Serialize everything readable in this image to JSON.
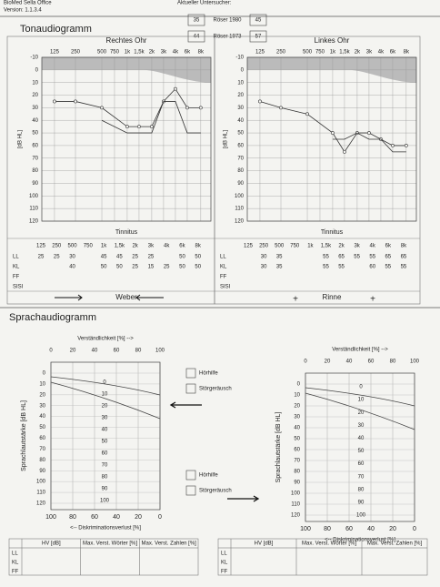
{
  "header": {
    "software": "BioMed Sella Office",
    "version": "Version: 1.1.3.4",
    "examiner": "Aktueller Untersucher:",
    "roeser": [
      {
        "left": "35",
        "label": "Röser 1980",
        "right": "45"
      },
      {
        "left": "44",
        "label": "Röser 1973",
        "right": "57"
      }
    ]
  },
  "tone": {
    "title": "Tonaudiogramm",
    "ylabel": "[dB HL]",
    "ylim": [
      -10,
      120
    ],
    "yticks": [
      -10,
      0,
      10,
      20,
      30,
      40,
      50,
      60,
      70,
      80,
      90,
      100,
      110,
      120
    ],
    "freqs": [
      "125",
      "250",
      "500",
      "750",
      "1k",
      "1,5k",
      "2k",
      "3k",
      "4k",
      "6k",
      "8k"
    ],
    "row_labels": [
      "LL",
      "KL",
      "FF",
      "SISI"
    ],
    "ears": [
      {
        "title": "Rechtes Ohr",
        "tinnitus": "Tinnitus",
        "test": "Weber",
        "test_marks": [
          "→",
          "←"
        ],
        "curves": [
          {
            "x": [
              "125",
              "250",
              "500",
              "1k",
              "1,5k",
              "2k",
              "3k",
              "4k",
              "6k",
              "8k"
            ],
            "values": [
              25,
              25,
              30,
              45,
              45,
              45,
              25,
              15,
              30,
              30
            ]
          },
          {
            "x": [
              "500",
              "1k",
              "1,5k",
              "2k",
              "3k",
              "4k",
              "6k",
              "8k"
            ],
            "values": [
              40,
              50,
              50,
              50,
              25,
              25,
              50,
              50
            ]
          }
        ],
        "rows": [
          [
            25,
            25,
            30,
            null,
            45,
            45,
            25,
            25,
            null,
            50,
            50
          ],
          [
            null,
            null,
            40,
            null,
            50,
            50,
            25,
            15,
            25,
            50,
            50
          ],
          [],
          []
        ]
      },
      {
        "title": "Linkes Ohr",
        "tinnitus": "Tinnitus",
        "test": "Rinne",
        "test_marks": [
          "+",
          "+"
        ],
        "curves": [
          {
            "x": [
              "125",
              "250",
              "500",
              "1k",
              "1,5k",
              "2k",
              "3k",
              "4k",
              "6k",
              "8k"
            ],
            "values": [
              25,
              30,
              35,
              50,
              65,
              50,
              50,
              55,
              60,
              60
            ]
          },
          {
            "x": [
              "1k",
              "1,5k",
              "2k",
              "3k",
              "4k",
              "6k",
              "8k"
            ],
            "values": [
              55,
              55,
              50,
              55,
              55,
              65,
              65
            ]
          }
        ],
        "rows": [
          [
            null,
            30,
            35,
            null,
            null,
            55,
            65,
            55,
            55,
            65,
            65
          ],
          [
            null,
            30,
            35,
            null,
            null,
            55,
            55,
            null,
            60,
            55,
            55
          ],
          [],
          []
        ]
      }
    ]
  },
  "speech": {
    "title": "Sprachaudiogramm",
    "top_label": "Verständlichkeit [%] -->",
    "bottom_label": "<-- Diskriminationsverlust [%]",
    "ylabel": "Sprachlautstärke [dB HL]",
    "top_ticks": [
      0,
      20,
      40,
      60,
      80,
      100
    ],
    "bottom_ticks": [
      100,
      80,
      60,
      40,
      20,
      0
    ],
    "yticks": [
      0,
      10,
      20,
      30,
      40,
      50,
      60,
      70,
      80,
      90,
      100,
      110,
      120
    ],
    "inner": [
      0,
      10,
      20,
      30,
      40,
      50,
      60,
      70,
      80,
      90,
      100
    ],
    "legend": [
      "Hörhilfe",
      "Störgeräusch"
    ],
    "table": {
      "columns": [
        "HV [dB]",
        "Max. Verst. Wörter [%]",
        "Max. Verst. Zahlen [%]"
      ],
      "rows": [
        "LL",
        "KL",
        "FF"
      ]
    }
  }
}
